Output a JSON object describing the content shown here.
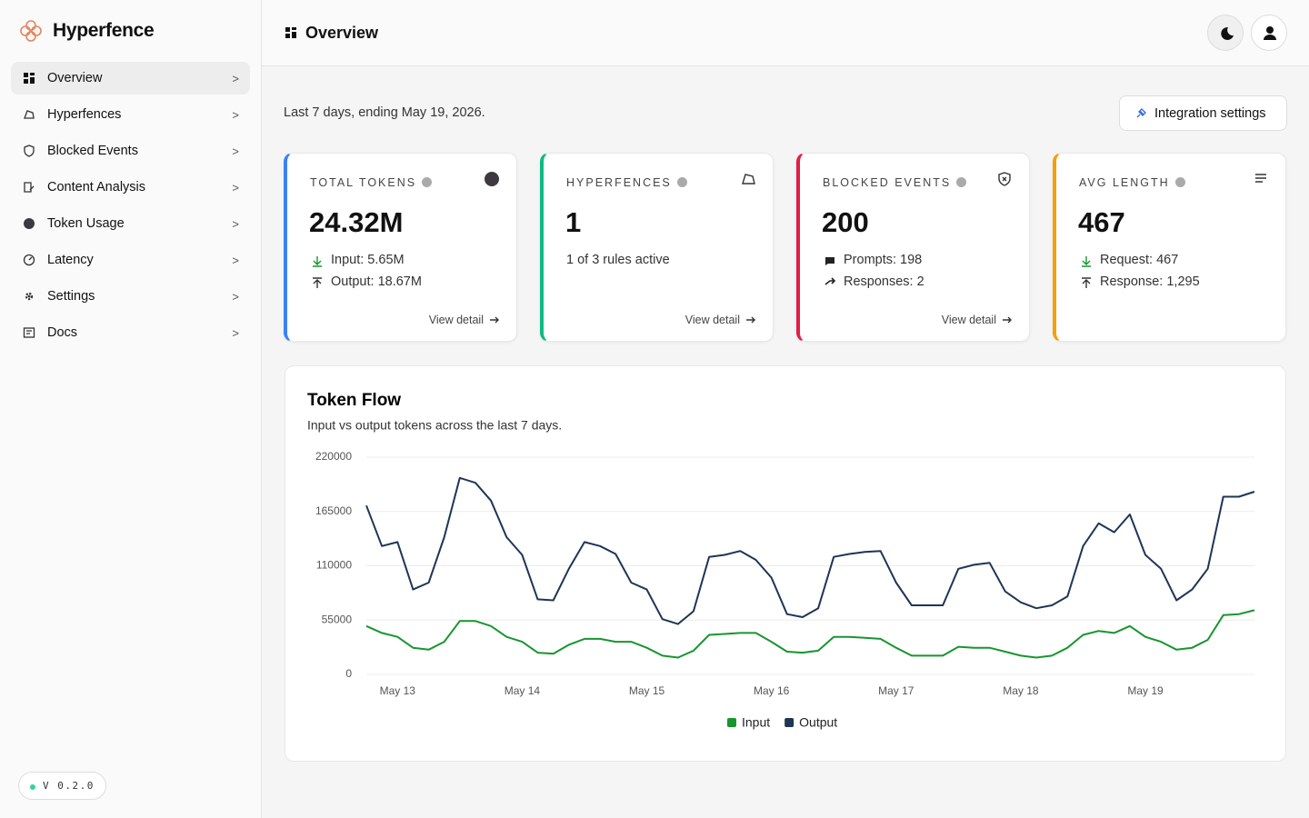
{
  "sidebar": {
    "brand": "Hyperfence",
    "nav": [
      {
        "label": "Overview",
        "chevron": ">"
      },
      {
        "label": "Hyperfences",
        "chevron": ">"
      },
      {
        "label": "Blocked Events",
        "chevron": ">"
      },
      {
        "label": "Content Analysis",
        "chevron": ">"
      },
      {
        "label": "Token Usage",
        "chevron": ">"
      },
      {
        "label": "Latency",
        "chevron": ">"
      },
      {
        "label": "Settings",
        "chevron": ">"
      },
      {
        "label": "Docs",
        "chevron": ">"
      }
    ],
    "version": "V 0.2.0"
  },
  "header": {
    "title": "Overview"
  },
  "period": "Last 7 days, ending May 19, 2026.",
  "integration_button": "Integration settings",
  "cards": [
    {
      "label": "TOTAL TOKENS",
      "value": "24.32M",
      "lines": [
        "Input: 5.65M",
        "Output: 18.67M"
      ],
      "link": "View detail",
      "color": "#3b82f6"
    },
    {
      "label": "HYPERFENCES",
      "value": "1",
      "lines": [
        "1 of 3 rules active"
      ],
      "link": "View detail",
      "color": "#10b981"
    },
    {
      "label": "BLOCKED EVENTS",
      "value": "200",
      "lines": [
        "Prompts: 198",
        "Responses: 2"
      ],
      "link": "View detail",
      "color": "#e11d48"
    },
    {
      "label": "AVG LENGTH",
      "value": "467",
      "lines": [
        "Request: 467",
        "Response: 1,295"
      ],
      "color": "#f59e0b"
    }
  ],
  "chart_data": {
    "type": "line",
    "title": "Token Flow",
    "subtitle": "Input vs output tokens across the last 7 days.",
    "categories": [
      null,
      null,
      "May 13",
      null,
      null,
      null,
      null,
      null,
      null,
      null,
      "May 14",
      null,
      null,
      null,
      null,
      null,
      null,
      null,
      "May 15",
      null,
      null,
      null,
      null,
      null,
      null,
      null,
      "May 16",
      null,
      null,
      null,
      null,
      null,
      null,
      null,
      "May 17",
      null,
      null,
      null,
      null,
      null,
      null,
      null,
      "May 18",
      null,
      null,
      null,
      null,
      null,
      null,
      null,
      "May 19",
      null,
      null,
      null,
      null,
      null,
      null,
      null
    ],
    "series": [
      {
        "name": "Input",
        "color": "#16962f",
        "values": [
          49000,
          42000,
          38000,
          27000,
          25000,
          33000,
          54000,
          54000,
          49000,
          38000,
          33000,
          22000,
          21000,
          30000,
          36000,
          36000,
          33000,
          33000,
          27000,
          19000,
          17000,
          24000,
          40000,
          41000,
          42000,
          42000,
          33000,
          23000,
          22000,
          24000,
          38000,
          38000,
          37000,
          36000,
          27000,
          19000,
          19000,
          19000,
          28000,
          27000,
          27000,
          23000,
          19000,
          17000,
          19000,
          27000,
          40000,
          44000,
          42000,
          49000,
          38000,
          33000,
          25000,
          27000,
          35000,
          60000,
          61000,
          65000
        ]
      },
      {
        "name": "Output",
        "color": "#1e3556",
        "values": [
          171000,
          130000,
          134000,
          86000,
          93000,
          139000,
          199000,
          194000,
          176000,
          139000,
          121000,
          76000,
          75000,
          107000,
          134000,
          130000,
          122000,
          93000,
          86000,
          56000,
          51000,
          64000,
          119000,
          121000,
          125000,
          116000,
          98000,
          61000,
          58000,
          67000,
          119000,
          122000,
          124000,
          125000,
          93000,
          70000,
          70000,
          70000,
          107000,
          111000,
          113000,
          84000,
          73000,
          67000,
          70000,
          79000,
          130000,
          153000,
          144000,
          162000,
          121000,
          107000,
          75000,
          86000,
          107000,
          180000,
          180000,
          185000
        ]
      }
    ],
    "ylim": [
      0,
      220000
    ],
    "yticks": [
      0,
      55000,
      110000,
      165000,
      220000
    ],
    "grid": true
  }
}
